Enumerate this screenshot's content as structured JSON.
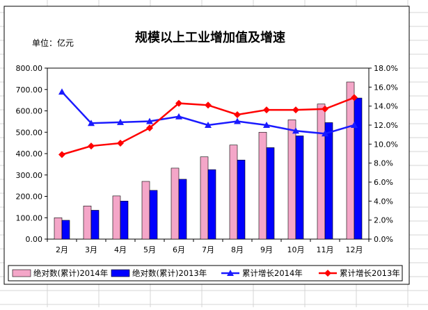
{
  "chart_data": {
    "type": "bar",
    "title": "规模以上工业增加值及增速",
    "unit_label": "单位：亿元",
    "categories": [
      "2月",
      "3月",
      "4月",
      "5月",
      "6月",
      "7月",
      "8月",
      "9月",
      "10月",
      "11月",
      "12月"
    ],
    "y_left": {
      "ticks": [
        "0.00",
        "100.00",
        "200.00",
        "300.00",
        "400.00",
        "500.00",
        "600.00",
        "700.00",
        "800.00"
      ],
      "ylim": [
        0,
        800
      ]
    },
    "y_right": {
      "ticks": [
        "0.0%",
        "2.0%",
        "4.0%",
        "6.0%",
        "8.0%",
        "10.0%",
        "12.0%",
        "14.0%",
        "16.0%",
        "18.0%"
      ],
      "ylim": [
        0,
        18
      ]
    },
    "series": [
      {
        "name": "绝对数(累计)2014年",
        "kind": "bar",
        "axis": "left",
        "color": "#f4a6c8",
        "values": [
          100,
          155,
          202,
          270,
          332,
          385,
          440,
          500,
          558,
          632,
          735
        ]
      },
      {
        "name": "绝对数(累计)2013年",
        "kind": "bar",
        "axis": "left",
        "color": "#0000ff",
        "values": [
          88,
          135,
          178,
          228,
          280,
          325,
          370,
          428,
          483,
          545,
          660
        ]
      },
      {
        "name": "累计增长2014年",
        "kind": "line",
        "axis": "right",
        "color": "#1a1aff",
        "marker": "triangle",
        "values": [
          15.5,
          12.2,
          12.3,
          12.4,
          12.9,
          12.0,
          12.4,
          12.0,
          11.4,
          11.1,
          12.0
        ]
      },
      {
        "name": "累计增长2013年",
        "kind": "line",
        "axis": "right",
        "color": "#ff0000",
        "marker": "diamond",
        "values": [
          8.9,
          9.8,
          10.1,
          11.7,
          14.3,
          14.1,
          13.1,
          13.6,
          13.6,
          13.7,
          14.9
        ]
      }
    ],
    "grid": false,
    "legend_position": "bottom"
  }
}
